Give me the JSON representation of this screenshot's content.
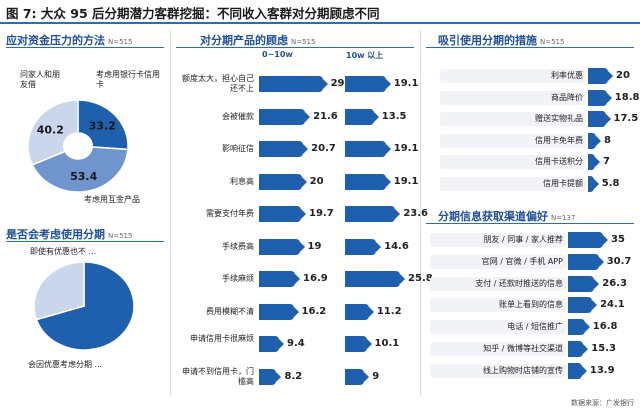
{
  "title": "图 7: 大众 95 后分期潜力客群挖掘：不同收入客群对分期顾虑不同",
  "source": "数据来源：广发银行",
  "colors": {
    "dark_blue": "#1e5fae",
    "mid_blue": "#6f95cc",
    "light_blue": "#c9d6ec"
  },
  "chart_data": [
    {
      "type": "pie",
      "title": "应对资金压力的方法",
      "n": "N=515",
      "slices": [
        {
          "label": "考虑用银行卡信用卡",
          "value": 33.2
        },
        {
          "label": "考虑用互金产品",
          "value": 53.4
        },
        {
          "label": "问家人和朋友借",
          "value": 40.2
        }
      ],
      "value_labels": [
        "33.2",
        "53.4",
        "40.2"
      ]
    },
    {
      "type": "pie",
      "title": "是否会考虑使用分期",
      "n": "N=515",
      "slices": [
        {
          "label": "会因优惠考虑分期 ...",
          "value": 70
        },
        {
          "label": "即使有优惠也不 ...",
          "value": 30
        }
      ]
    },
    {
      "type": "bar",
      "title": "对分期产品的顾虑",
      "n": "N=515",
      "categories": [
        "额度太大，担心自己还不上",
        "会被催款",
        "影响征信",
        "利息高",
        "需要支付年费",
        "手续费高",
        "手续麻烦",
        "费用模糊不清",
        "申请信用卡很麻烦",
        "申请不到信用卡，门槛高"
      ],
      "series": [
        {
          "name": "0~10w",
          "values": [
            29.8,
            21.6,
            20.7,
            20,
            19.7,
            19,
            16.9,
            16.2,
            9.4,
            8.2
          ]
        },
        {
          "name": "10w 以上",
          "values": [
            19.1,
            13.5,
            19.1,
            19.1,
            23.6,
            14.6,
            25.8,
            11.2,
            10.1,
            9
          ]
        }
      ]
    },
    {
      "type": "bar",
      "title": "吸引使用分期的措施",
      "n": "N=515",
      "categories": [
        "利率优惠",
        "商品降价",
        "赠送实物礼品",
        "信用卡免年费",
        "信用卡送积分",
        "信用卡提额"
      ],
      "values": [
        20,
        18.8,
        17.5,
        8,
        7,
        5.8
      ]
    },
    {
      "type": "bar",
      "title": "分期信息获取渠道偏好",
      "n": "N=137",
      "categories": [
        "朋友 / 同事 / 家人推荐",
        "官网 / 官微 / 手机 APP",
        "支付 / 还款时推送的信息",
        "账单上看到的信息",
        "电话 / 短信推广",
        "知乎 / 微博等社交渠道",
        "线上购物时店铺的宣传"
      ],
      "values": [
        35,
        30.7,
        26.3,
        24.1,
        16.8,
        15.3,
        13.9
      ]
    }
  ]
}
